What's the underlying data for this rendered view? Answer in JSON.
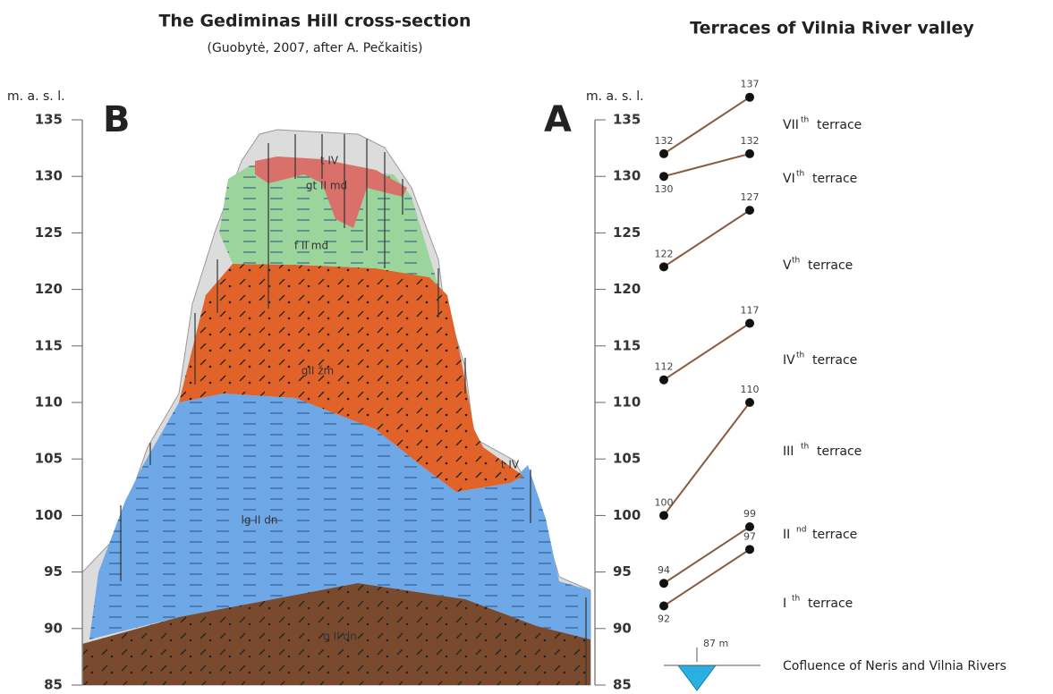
{
  "left_panel": {
    "title": "The Gediminas Hill cross-section",
    "subtitle": "(Guobytė, 2007, after A. Pečkaitis)",
    "panel_letter": "B",
    "axis_label": "m. a. s. l.",
    "yticks": [
      85,
      90,
      95,
      100,
      105,
      110,
      115,
      120,
      125,
      130,
      135
    ],
    "layers": [
      "t IV",
      "gt II md",
      "f II md",
      "gII žm",
      "lg II dn",
      "g II dn",
      "t IV"
    ]
  },
  "right_axis": {
    "panel_letter": "A",
    "axis_label": "m. a. s. l.",
    "yticks": [
      85,
      90,
      95,
      100,
      105,
      110,
      115,
      120,
      125,
      130,
      135
    ]
  },
  "terraces": {
    "title": "Terraces of Vilnia River valley",
    "items": [
      {
        "numeral": "VII",
        "suffix": "th",
        "label": "terrace",
        "start": 132,
        "end": 137
      },
      {
        "numeral": "VI",
        "suffix": "th",
        "label": "terrace",
        "start": 130,
        "end": 132
      },
      {
        "numeral": "V",
        "suffix": "th",
        "label": "terrace",
        "start": 122,
        "end": 127
      },
      {
        "numeral": "IV",
        "suffix": "th",
        "label": "terrace",
        "start": 112,
        "end": 117
      },
      {
        "numeral": "III",
        "suffix": "th",
        "label": "terrace",
        "start": 100,
        "end": 110
      },
      {
        "numeral": "II",
        "suffix": "nd",
        "label": "terrace",
        "start": 94,
        "end": 99
      },
      {
        "numeral": "I",
        "suffix": "th",
        "label": "terrace",
        "start": 92,
        "end": 97
      }
    ]
  },
  "confluence": {
    "width_label": "87 m",
    "label": "Cofluence of Neris and Vilnia Rivers"
  }
}
